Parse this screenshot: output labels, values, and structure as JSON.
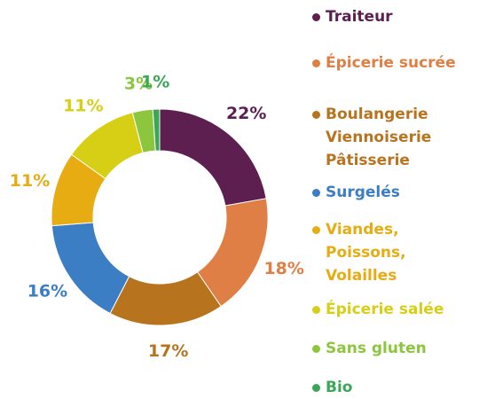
{
  "chart_data": {
    "type": "donut",
    "categories": [
      "Traiteur",
      "Épicerie sucrée",
      "Boulangerie Viennoiserie Pâtisserie",
      "Surgelés",
      "Viandes, Poissons, Volailles",
      "Épicerie salée",
      "Sans gluten",
      "Bio"
    ],
    "values": [
      22,
      18,
      17,
      16,
      11,
      11,
      3,
      1
    ],
    "value_labels": [
      "22%",
      "18%",
      "17%",
      "16%",
      "11%",
      "11%",
      "3%",
      "1%"
    ],
    "colors": [
      "#5c1f4f",
      "#e07f45",
      "#b8731f",
      "#3c7ec3",
      "#e6ac12",
      "#d6cf16",
      "#8cc63f",
      "#3aa657"
    ]
  }
}
